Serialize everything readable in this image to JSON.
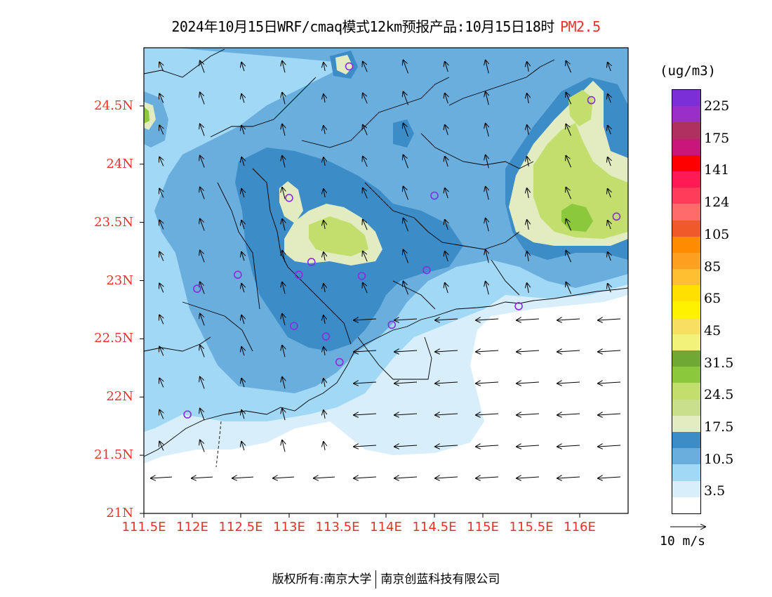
{
  "title": {
    "main": "2024年10月15日WRF/cmaq模式12km预报产品:10月15日18时",
    "variable": "PM2.5"
  },
  "axes": {
    "lat_ticks": [
      "24.5N",
      "24N",
      "23.5N",
      "23N",
      "22.5N",
      "22N",
      "21.5N",
      "21N"
    ],
    "lon_ticks": [
      "111.5E",
      "112E",
      "112.5E",
      "113E",
      "113.5E",
      "114E",
      "114.5E",
      "115E",
      "115.5E",
      "116E"
    ],
    "lat_range": [
      21.0,
      25.0
    ],
    "lon_range": [
      111.5,
      116.5
    ]
  },
  "colorbar": {
    "unit": "(ug/m3)",
    "labels": [
      "225",
      "175",
      "141",
      "124",
      "105",
      "85",
      "65",
      "45",
      "31.5",
      "24.5",
      "17.5",
      "10.5",
      "3.5"
    ],
    "colors": [
      "#7b2fd6",
      "#9a2fc8",
      "#b03060",
      "#c8167a",
      "#ff0000",
      "#ff1a55",
      "#ff3c5a",
      "#ff6a6a",
      "#f05a28",
      "#ff8c00",
      "#ffa020",
      "#ffbf30",
      "#ffe000",
      "#fff200",
      "#f7e060",
      "#f2f27a",
      "#6fa832",
      "#8cc83c",
      "#c2df6e",
      "#c8e08c",
      "#e2ecc0",
      "#3c8cc8",
      "#6aaede",
      "#a0d8f6",
      "#d8eefa",
      "#ffffff"
    ]
  },
  "colors": {
    "level_3_5": "#d8eefa",
    "level_10_5": "#a0d8f6",
    "level_14": "#6aaede",
    "level_17_5": "#3c8cc8",
    "level_21": "#e2ecc0",
    "level_24_5": "#c2df6e",
    "level_31_5": "#8cc83c",
    "title_accent": "#e8322a",
    "station_marker": "#8a2be2"
  },
  "wind_reference": {
    "label": "10 m/s"
  },
  "footer": {
    "left": "版权所有:南京大学",
    "right": "南京创蓝科技有限公司"
  },
  "stations": [
    {
      "lon": 113.62,
      "lat": 24.84
    },
    {
      "lon": 116.12,
      "lat": 24.55
    },
    {
      "lon": 113.0,
      "lat": 23.71
    },
    {
      "lon": 114.5,
      "lat": 23.73
    },
    {
      "lon": 116.38,
      "lat": 23.55
    },
    {
      "lon": 113.23,
      "lat": 23.16
    },
    {
      "lon": 112.47,
      "lat": 23.05
    },
    {
      "lon": 113.1,
      "lat": 23.05
    },
    {
      "lon": 113.75,
      "lat": 23.04
    },
    {
      "lon": 114.42,
      "lat": 23.09
    },
    {
      "lon": 112.05,
      "lat": 22.93
    },
    {
      "lon": 115.37,
      "lat": 22.78
    },
    {
      "lon": 113.05,
      "lat": 22.61
    },
    {
      "lon": 114.06,
      "lat": 22.62
    },
    {
      "lon": 113.38,
      "lat": 22.52
    },
    {
      "lon": 113.52,
      "lat": 22.3
    },
    {
      "lon": 111.95,
      "lat": 21.85
    }
  ]
}
